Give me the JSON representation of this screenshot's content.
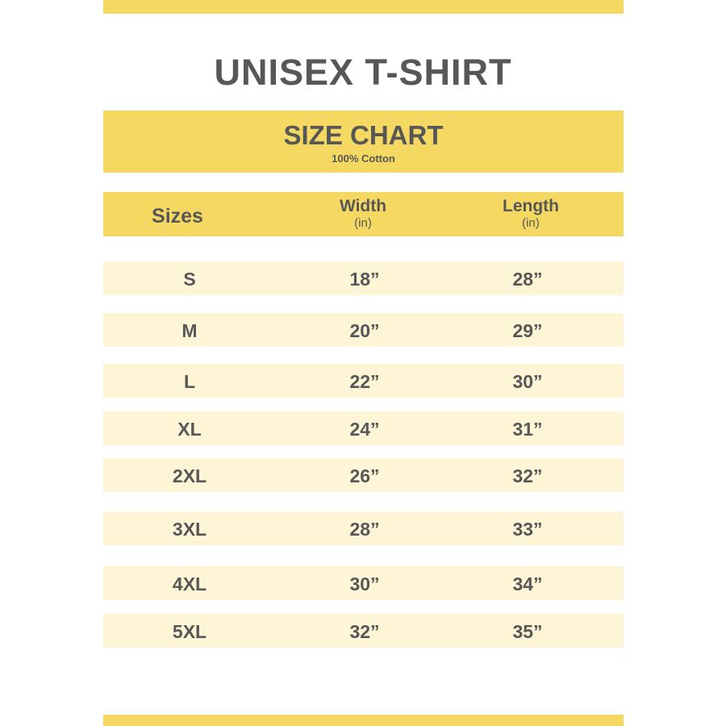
{
  "title": "UNISEX T-SHIRT",
  "subtitle": "SIZE CHART",
  "material": "100% Cotton",
  "headers": {
    "size": "Sizes",
    "width": "Width",
    "width_unit": "(in)",
    "length": "Length",
    "length_unit": "(in)"
  },
  "rows": [
    {
      "size": "S",
      "width": "18”",
      "length": "28”"
    },
    {
      "size": "M",
      "width": "20”",
      "length": "29”"
    },
    {
      "size": "L",
      "width": "22”",
      "length": "30”"
    },
    {
      "size": "XL",
      "width": "24”",
      "length": "31”"
    },
    {
      "size": "2XL",
      "width": "26”",
      "length": "32”"
    },
    {
      "size": "3XL",
      "width": "28”",
      "length": "33”"
    },
    {
      "size": "4XL",
      "width": "30”",
      "length": "34”"
    },
    {
      "size": "5XL",
      "width": "32”",
      "length": "35”"
    }
  ],
  "colors": {
    "accent": "#F5D862",
    "row": "#FEF5D6",
    "text": "#575757"
  }
}
